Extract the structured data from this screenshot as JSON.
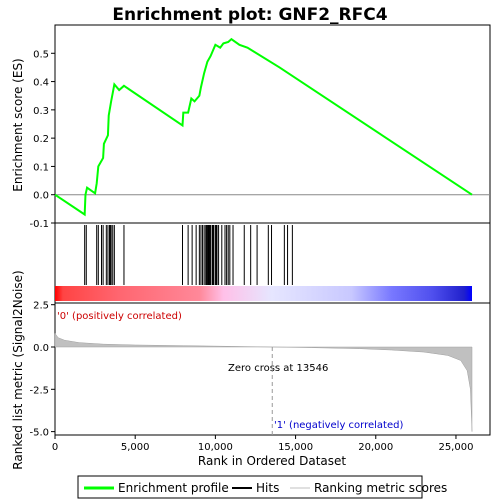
{
  "chart_data": {
    "title": "Enrichment plot: GNF2_RFC4",
    "x_max": 26000,
    "n_genes": 26000,
    "enrichment_panel": {
      "type": "line",
      "ylabel": "Enrichment score (ES)",
      "ylim": [
        -0.1,
        0.6
      ],
      "yticks": [
        -0.1,
        0.0,
        0.1,
        0.2,
        0.3,
        0.4,
        0.5
      ],
      "ytick_labels": [
        "-0.1",
        "0.0",
        "0.1",
        "0.2",
        "0.3",
        "0.4",
        "0.5"
      ],
      "series_color": "#00ff00",
      "points": [
        [
          0,
          0.0
        ],
        [
          1850,
          -0.07
        ],
        [
          1900,
          0.0
        ],
        [
          2000,
          0.025
        ],
        [
          2500,
          0.005
        ],
        [
          2600,
          0.04
        ],
        [
          2700,
          0.1
        ],
        [
          3000,
          0.13
        ],
        [
          3050,
          0.18
        ],
        [
          3300,
          0.21
        ],
        [
          3350,
          0.28
        ],
        [
          3500,
          0.33
        ],
        [
          3600,
          0.36
        ],
        [
          3700,
          0.39
        ],
        [
          4000,
          0.37
        ],
        [
          4300,
          0.385
        ],
        [
          7950,
          0.245
        ],
        [
          8000,
          0.29
        ],
        [
          8300,
          0.29
        ],
        [
          8500,
          0.34
        ],
        [
          8700,
          0.33
        ],
        [
          9000,
          0.35
        ],
        [
          9100,
          0.38
        ],
        [
          9300,
          0.43
        ],
        [
          9500,
          0.47
        ],
        [
          9700,
          0.49
        ],
        [
          10000,
          0.53
        ],
        [
          10300,
          0.52
        ],
        [
          10500,
          0.535
        ],
        [
          10800,
          0.54
        ],
        [
          11000,
          0.55
        ],
        [
          11500,
          0.53
        ],
        [
          12000,
          0.52
        ],
        [
          14000,
          0.45
        ],
        [
          26000,
          0.0
        ]
      ]
    },
    "hits_panel": {
      "hit_positions": [
        1850,
        1950,
        2600,
        2700,
        2900,
        3000,
        3200,
        3300,
        3400,
        3450,
        3500,
        3600,
        3700,
        4300,
        7950,
        8300,
        8550,
        8800,
        9000,
        9100,
        9200,
        9300,
        9400,
        9450,
        9500,
        9550,
        9600,
        9650,
        9700,
        9800,
        9850,
        9900,
        10000,
        10050,
        10100,
        10200,
        10400,
        10600,
        10700,
        10800,
        10900,
        11100,
        11800,
        12200,
        12600,
        13300,
        13500,
        14300,
        14500,
        14800
      ],
      "color_bar_stops": [
        {
          "x": 0,
          "color": "#ff0000"
        },
        {
          "x": 500,
          "color": "#ff4444"
        },
        {
          "x": 4000,
          "color": "#ff6670"
        },
        {
          "x": 9000,
          "color": "#ff8899"
        },
        {
          "x": 10500,
          "color": "#ffc0e8"
        },
        {
          "x": 13500,
          "color": "#e6e6ff"
        },
        {
          "x": 18500,
          "color": "#c8c8ff"
        },
        {
          "x": 21000,
          "color": "#7878ff"
        },
        {
          "x": 23500,
          "color": "#5050ee"
        },
        {
          "x": 25500,
          "color": "#2020cc"
        },
        {
          "x": 26000,
          "color": "#0000ff"
        }
      ]
    },
    "ranked_panel": {
      "type": "area",
      "ylabel": "Ranked list metric (Signal2Noise)",
      "xlabel": "Rank in Ordered Dataset",
      "ylim": [
        -5.2,
        2.6
      ],
      "yticks": [
        2.5,
        0.0,
        -2.5,
        -5.0
      ],
      "ytick_labels": [
        "2.5",
        "0.0",
        "-2.5",
        "-5.0"
      ],
      "xticks": [
        0,
        5000,
        10000,
        15000,
        20000,
        25000
      ],
      "xtick_labels": [
        "0",
        "5,000",
        "10,000",
        "15,000",
        "20,000",
        "25,000"
      ],
      "fill_color": "#c0c0c0",
      "profile": [
        [
          0,
          0.8
        ],
        [
          200,
          0.55
        ],
        [
          600,
          0.4
        ],
        [
          1500,
          0.26
        ],
        [
          3000,
          0.17
        ],
        [
          5000,
          0.12
        ],
        [
          8000,
          0.08
        ],
        [
          11000,
          0.04
        ],
        [
          13546,
          0.0
        ],
        [
          16000,
          -0.04
        ],
        [
          19000,
          -0.1
        ],
        [
          21000,
          -0.18
        ],
        [
          23000,
          -0.3
        ],
        [
          24500,
          -0.5
        ],
        [
          25300,
          -0.8
        ],
        [
          25700,
          -1.4
        ],
        [
          25900,
          -2.5
        ],
        [
          26000,
          -5.0
        ]
      ],
      "zero_cross_label": "Zero cross at 13546",
      "zero_cross_x": 13546,
      "pos_label": "'0' (positively correlated)",
      "neg_label": "'1' (negatively correlated)"
    },
    "legend": {
      "position": "bottom",
      "entries": [
        {
          "label": "Enrichment profile",
          "color": "#00ff00",
          "kind": "line"
        },
        {
          "label": "Hits",
          "color": "#000000",
          "kind": "line"
        },
        {
          "label": "Ranking metric scores",
          "color": "#c0c0c0",
          "kind": "line"
        }
      ]
    }
  }
}
